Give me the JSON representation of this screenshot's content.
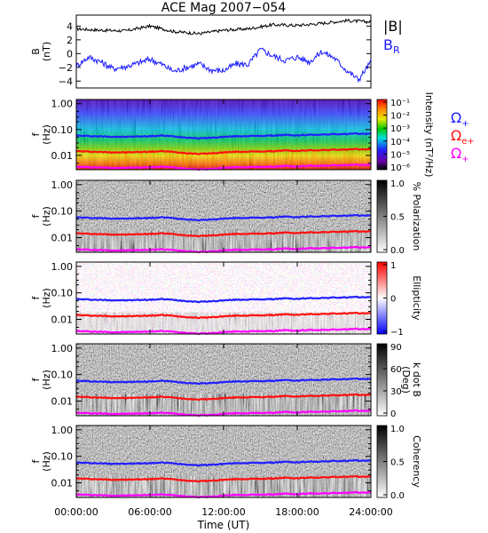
{
  "title": "ACE Mag 2007−054",
  "colors": {
    "B_total": "#000000",
    "B_R": "#1a1aff",
    "H_plus": "#2020ff",
    "He_plus": "#ff1010",
    "O_plus": "#ff00ff"
  },
  "chart_data": [
    {
      "type": "line",
      "panel": "magnetic-field",
      "ylabel": "B",
      "yunit": "(nT)",
      "yticks": [
        "4",
        "2",
        "0",
        "−2",
        "−4"
      ],
      "ylim": [
        -5,
        5.6
      ],
      "xlim_hours": [
        0,
        24
      ],
      "series": [
        {
          "name": "|B|",
          "x_hours": [
            0,
            2,
            4,
            6,
            8,
            10,
            12,
            14,
            16,
            18,
            20,
            22,
            24
          ],
          "values": [
            3.6,
            3.4,
            3.3,
            4.0,
            3.2,
            2.9,
            3.4,
            3.6,
            4.2,
            4.1,
            4.4,
            4.8,
            4.6
          ]
        },
        {
          "name": "B_R",
          "x_hours": [
            0,
            1,
            2,
            3,
            4,
            5,
            6,
            7,
            8,
            9,
            10,
            11,
            12,
            13,
            14,
            15,
            16,
            17,
            18,
            19,
            20,
            21,
            22,
            23,
            24
          ],
          "values": [
            -1.8,
            -0.5,
            -1.2,
            -2.2,
            -1.9,
            -1.4,
            -0.8,
            -1.6,
            -2.6,
            -2.0,
            -1.5,
            -2.4,
            -2.5,
            -1.5,
            -1.6,
            0.6,
            -0.3,
            -1.0,
            -0.5,
            -1.2,
            0.3,
            -0.6,
            -2.4,
            -3.8,
            -1.2
          ]
        }
      ]
    },
    {
      "type": "heatmap",
      "panel": "power-spectral-density",
      "ylabel": "f",
      "yunit": "(Hz)",
      "yticks": [
        "1.00",
        "0.10",
        "0.01"
      ],
      "colorbar_label": "Intensity (nT²/Hz)",
      "colorbar_ticks": [
        "10⁻¹",
        "10⁻²",
        "10⁻³",
        "10⁻⁴",
        "10⁻⁵",
        "10⁻⁶"
      ],
      "colorbar_range": [
        1e-06,
        0.1
      ],
      "legend": [
        "ΩH+",
        "ΩHe+",
        "ΩO+"
      ]
    },
    {
      "type": "heatmap",
      "panel": "polarization",
      "ylabel": "f",
      "yunit": "(Hz)",
      "yticks": [
        "1.00",
        "0.10",
        "0.01"
      ],
      "colorbar_label": "% Polarization",
      "colorbar_ticks": [
        "1.0",
        "0.5",
        "0.0"
      ],
      "colorbar_range": [
        0,
        1
      ]
    },
    {
      "type": "heatmap",
      "panel": "ellipticity",
      "ylabel": "f",
      "yunit": "(Hz)",
      "yticks": [
        "1.00",
        "0.10",
        "0.01"
      ],
      "colorbar_label": "Ellipticity",
      "colorbar_ticks": [
        "1",
        "0",
        "−1"
      ],
      "colorbar_range": [
        -1,
        1
      ]
    },
    {
      "type": "heatmap",
      "panel": "k-dot-b",
      "ylabel": "f",
      "yunit": "(Hz)",
      "yticks": [
        "1.00",
        "0.10",
        "0.01"
      ],
      "colorbar_label": "k dot B",
      "colorbar_unit": "(Deg)",
      "colorbar_ticks": [
        "90",
        "60",
        "30",
        "0"
      ],
      "colorbar_range": [
        0,
        90
      ]
    },
    {
      "type": "heatmap",
      "panel": "coherency",
      "ylabel": "f",
      "yunit": "(Hz)",
      "yticks": [
        "1.00",
        "0.10",
        "0.01"
      ],
      "colorbar_label": "Coherency",
      "colorbar_ticks": [
        "1.0",
        "0.5",
        "0.0"
      ],
      "colorbar_range": [
        0,
        1
      ]
    }
  ],
  "gyrofrequency_lines": {
    "x_hours": [
      0,
      1,
      2,
      3,
      4,
      5,
      6,
      7,
      8,
      9,
      10,
      11,
      12,
      13,
      14,
      15,
      16,
      17,
      18,
      19,
      20,
      21,
      22,
      23,
      24
    ],
    "H_plus_hz": [
      0.058,
      0.056,
      0.054,
      0.053,
      0.052,
      0.054,
      0.055,
      0.058,
      0.054,
      0.049,
      0.046,
      0.048,
      0.052,
      0.055,
      0.056,
      0.057,
      0.058,
      0.062,
      0.059,
      0.063,
      0.064,
      0.066,
      0.067,
      0.069,
      0.068
    ],
    "He_plus_hz": [
      0.0145,
      0.014,
      0.0135,
      0.0132,
      0.013,
      0.0135,
      0.0138,
      0.0145,
      0.0135,
      0.0122,
      0.0115,
      0.012,
      0.013,
      0.0138,
      0.014,
      0.0142,
      0.0145,
      0.0155,
      0.0148,
      0.0158,
      0.016,
      0.0165,
      0.0168,
      0.0172,
      0.017
    ],
    "O_plus_hz": [
      0.0036,
      0.0035,
      0.0034,
      0.0033,
      0.0033,
      0.0034,
      0.0035,
      0.0036,
      0.0034,
      0.0031,
      0.0029,
      0.003,
      0.0033,
      0.0035,
      0.0035,
      0.0036,
      0.0036,
      0.0039,
      0.0037,
      0.004,
      0.004,
      0.0041,
      0.0042,
      0.0043,
      0.0043
    ]
  },
  "x_axis": {
    "label": "Time (UT)",
    "ticks": [
      "00:00:00",
      "06:00:00",
      "12:00:00",
      "18:00:00",
      "24:00:00"
    ],
    "tick_hours": [
      0,
      6,
      12,
      18,
      24
    ]
  }
}
